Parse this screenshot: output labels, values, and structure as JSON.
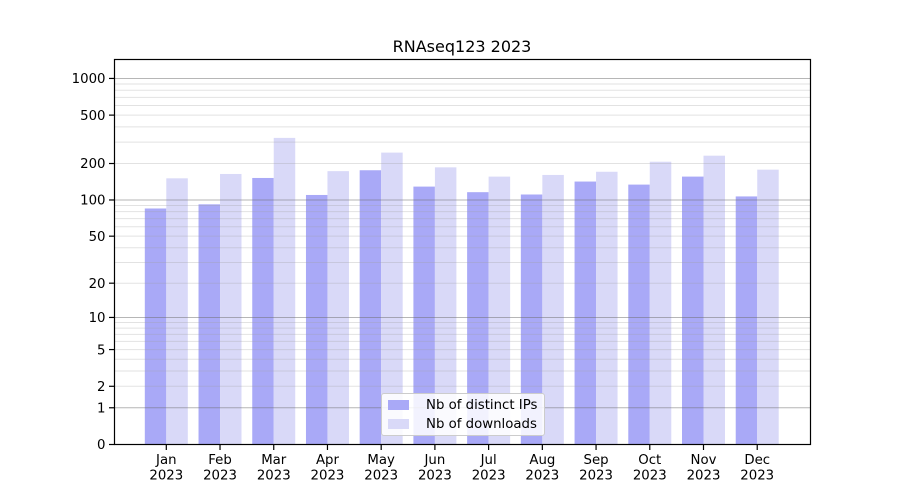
{
  "chart_data": {
    "type": "bar",
    "title": "RNAseq123 2023",
    "categories": [
      {
        "month": "Jan",
        "year": "2023"
      },
      {
        "month": "Feb",
        "year": "2023"
      },
      {
        "month": "Mar",
        "year": "2023"
      },
      {
        "month": "Apr",
        "year": "2023"
      },
      {
        "month": "May",
        "year": "2023"
      },
      {
        "month": "Jun",
        "year": "2023"
      },
      {
        "month": "Jul",
        "year": "2023"
      },
      {
        "month": "Aug",
        "year": "2023"
      },
      {
        "month": "Sep",
        "year": "2023"
      },
      {
        "month": "Oct",
        "year": "2023"
      },
      {
        "month": "Nov",
        "year": "2023"
      },
      {
        "month": "Dec",
        "year": "2023"
      }
    ],
    "series": [
      {
        "name": "Nb of distinct IPs",
        "color": "#a9a9f7",
        "values": [
          85,
          92,
          152,
          110,
          176,
          129,
          116,
          111,
          142,
          134,
          156,
          107
        ]
      },
      {
        "name": "Nb of downloads",
        "color": "#d9d9f8",
        "values": [
          151,
          164,
          325,
          173,
          246,
          186,
          156,
          161,
          171,
          207,
          232,
          178
        ]
      }
    ],
    "y_axis": {
      "scale": "log1p",
      "ticks": [
        0,
        1,
        2,
        5,
        10,
        20,
        50,
        100,
        200,
        500,
        1000
      ],
      "ylim": [
        0,
        1430
      ]
    },
    "grid": {
      "enabled": true,
      "major_values": [
        1,
        10,
        100,
        1000
      ],
      "minor_color": "#e2e2e2",
      "major_color": "#bdbdbd"
    },
    "legend_position": "lower-center",
    "xlabel": "",
    "ylabel": ""
  }
}
